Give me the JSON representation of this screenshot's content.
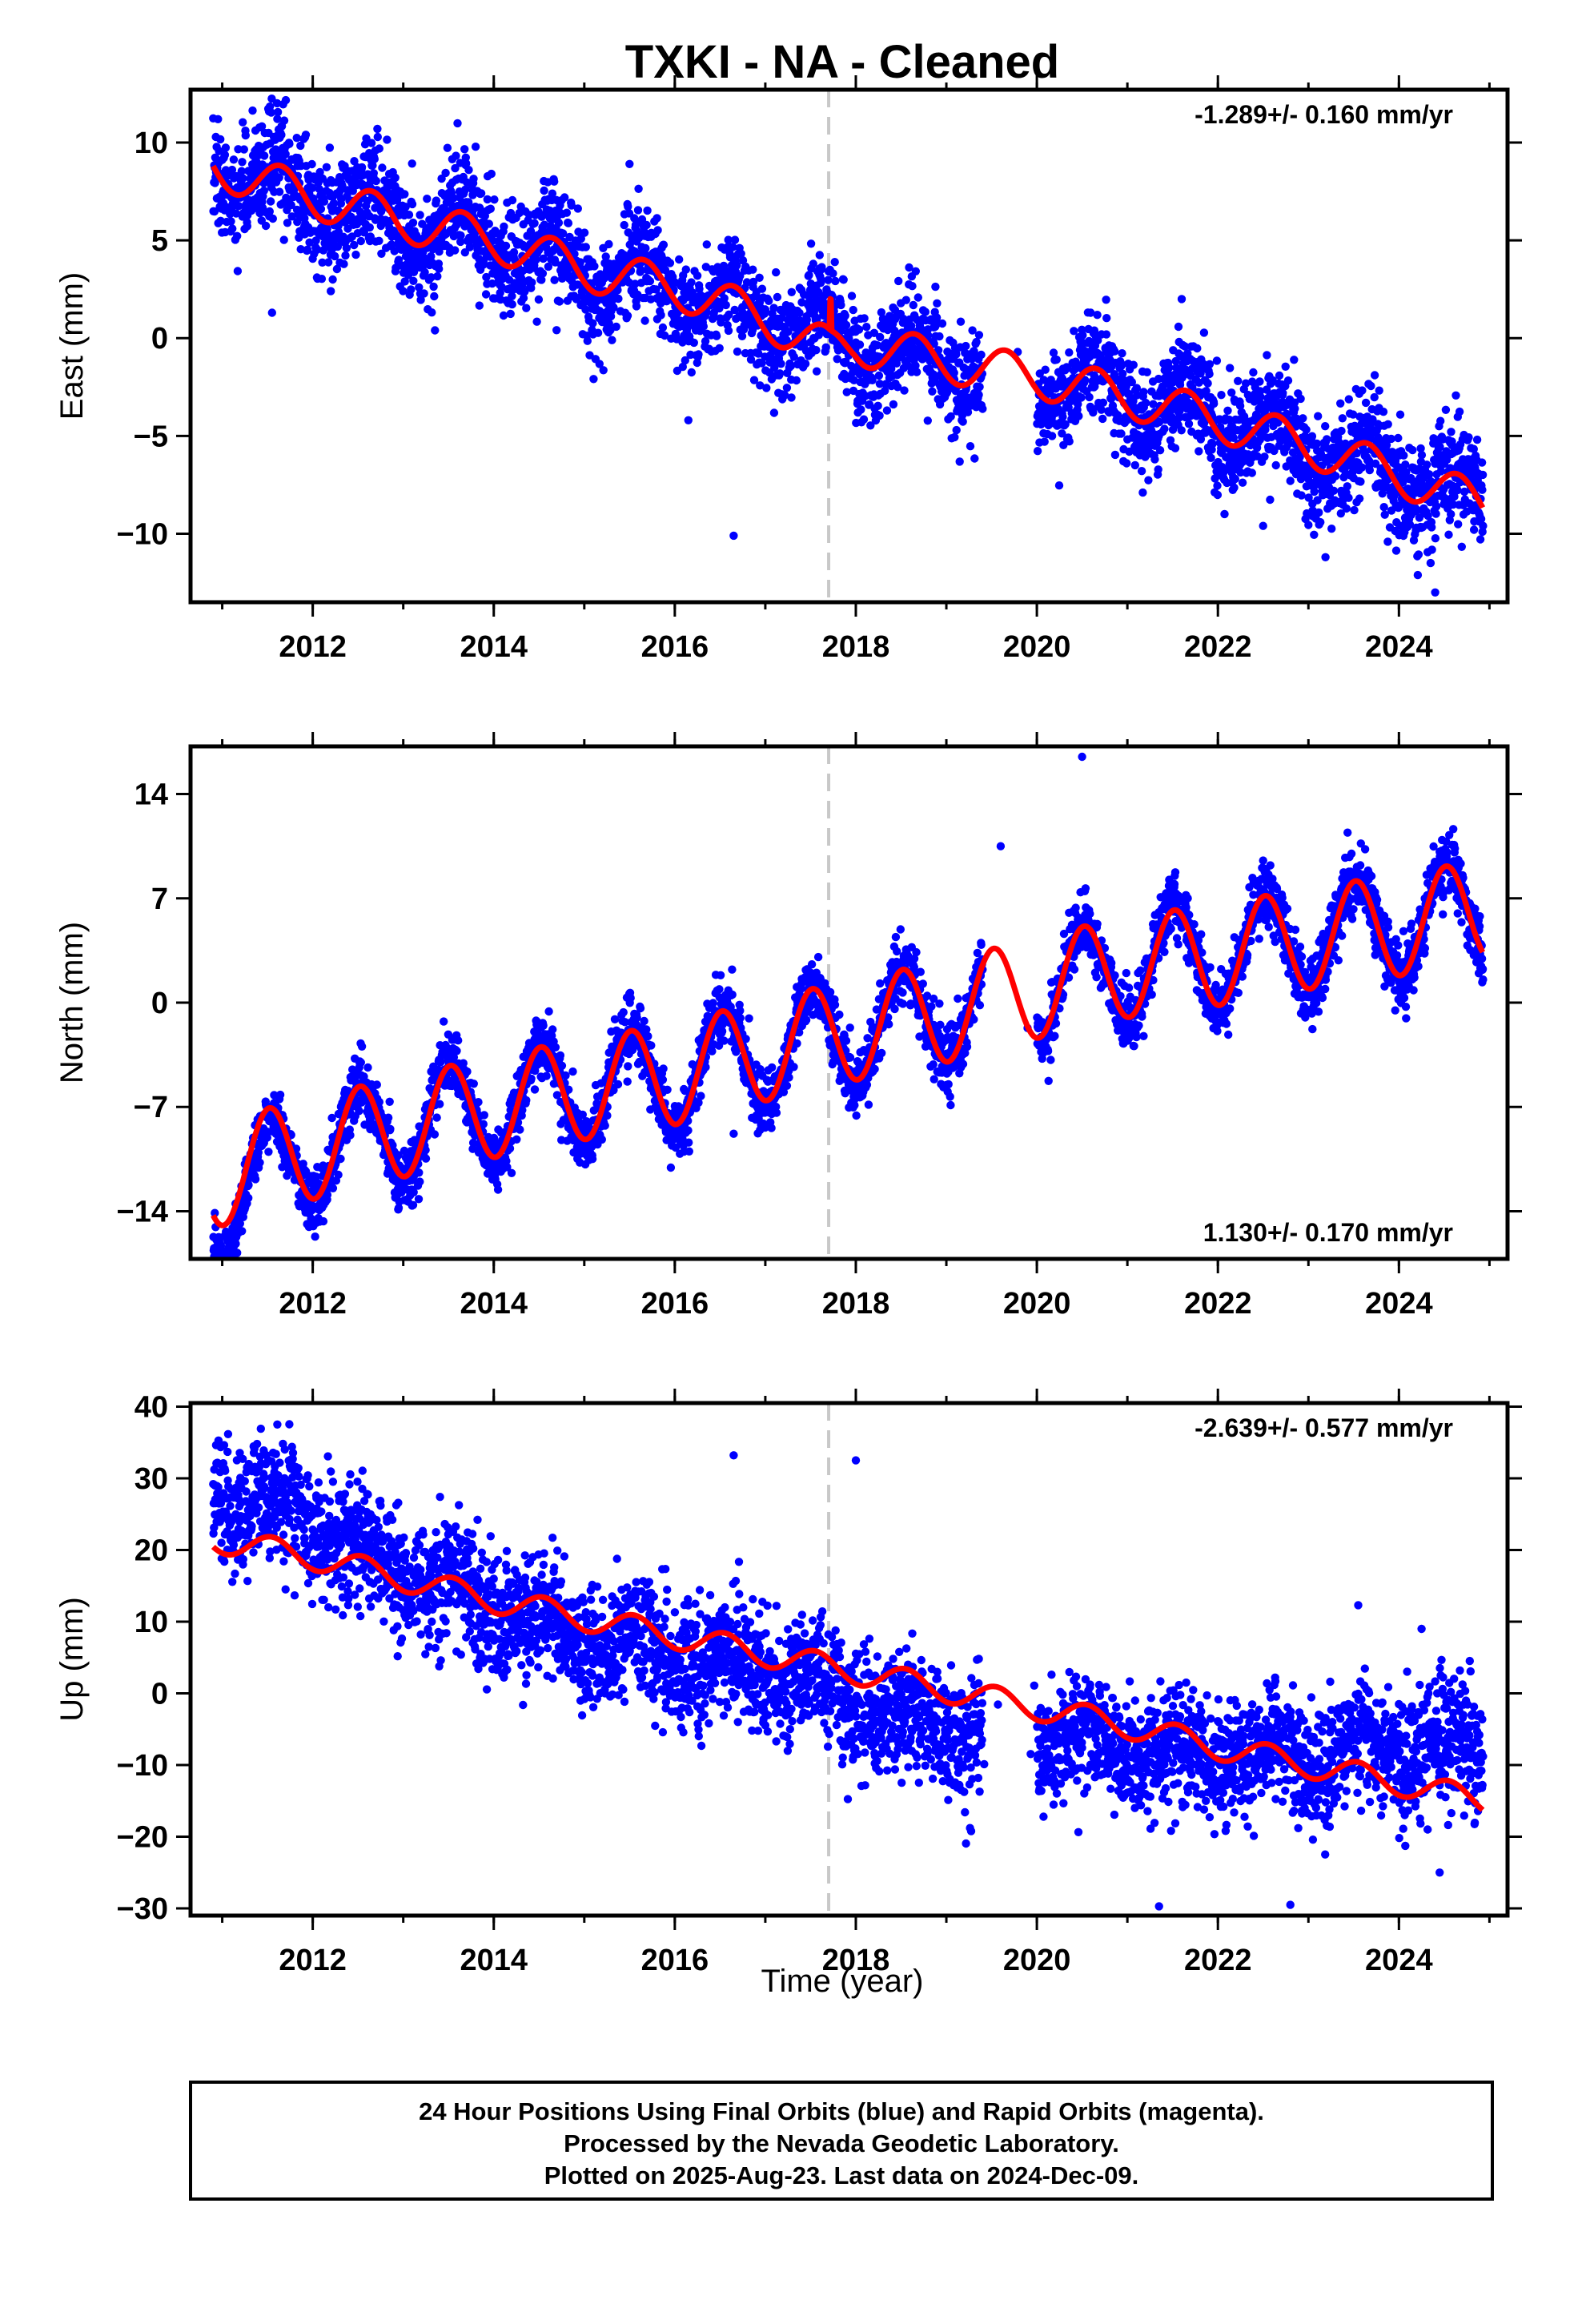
{
  "page": {
    "footer_lines": [
      "24 Hour Positions Using Final Orbits (blue) and Rapid Orbits (magenta).",
      "Processed by the Nevada Geodetic Laboratory.",
      "Plotted on 2025-Aug-23. Last data on 2024-Dec-09."
    ]
  },
  "colors": {
    "final_orbits": "#0000ff",
    "model_fit": "#ff0000",
    "equipment_change": "#c8c8c8",
    "frame": "#000000"
  },
  "chart_data": [
    {
      "type": "scatter",
      "title": "TXKI  - NA - Cleaned",
      "ylabel": "East (mm)",
      "xlabel": "",
      "xlim": [
        2010.65,
        2025.2
      ],
      "ylim": [
        -13.5,
        12.7
      ],
      "xticks": [
        2012,
        2014,
        2016,
        2018,
        2020,
        2022,
        2024
      ],
      "xtick_labels": [
        "2012",
        "2014",
        "2016",
        "2018",
        "2020",
        "2022",
        "2024"
      ],
      "yticks": [
        10,
        5,
        0,
        -5,
        -10
      ],
      "ytick_labels": [
        "10",
        "5",
        "0",
        "−5",
        "−10"
      ],
      "rate_label": "-1.289+/- 0.160 mm/yr",
      "rate_position": "top-right",
      "equipment_change_year": 2017.7,
      "data_gap": [
        2019.4,
        2020.0
      ],
      "series": [
        {
          "kind": "points",
          "color": "#0000ff",
          "x_start": 2010.9,
          "x_end": 2024.93,
          "base": [
            [
              2010.9,
              8.8
            ],
            [
              2012.0,
              7.2
            ],
            [
              2013.0,
              6.0
            ],
            [
              2014.0,
              5.0
            ],
            [
              2015.0,
              3.5
            ],
            [
              2016.0,
              2.6
            ],
            [
              2017.0,
              1.0
            ],
            [
              2018.0,
              -0.3
            ],
            [
              2019.0,
              -1.2
            ],
            [
              2020.0,
              -2.0
            ],
            [
              2021.0,
              -3.0
            ],
            [
              2022.0,
              -4.2
            ],
            [
              2023.0,
              -5.5
            ],
            [
              2024.0,
              -7.0
            ],
            [
              2024.93,
              -8.5
            ]
          ],
          "seasonal_amplitude": 1.3,
          "seasonal_peak_phase": 0.65,
          "noise_sd": 1.35,
          "outliers": [
            [
              2011.55,
              1.3
            ],
            [
              2012.2,
              2.4
            ],
            [
              2013.35,
              0.4
            ],
            [
              2015.5,
              8.9
            ],
            [
              2016.15,
              -4.2
            ],
            [
              2016.65,
              -10.1
            ],
            [
              2021.6,
              2.0
            ],
            [
              2022.5,
              -9.6
            ],
            [
              2024.4,
              -13.0
            ],
            [
              2024.35,
              -11.5
            ]
          ]
        },
        {
          "kind": "line",
          "color": "#ff0000",
          "step_at": 2017.72,
          "step_size": 1.6,
          "base": [
            [
              2010.9,
              8.8
            ],
            [
              2012.0,
              7.2
            ],
            [
              2013.0,
              6.0
            ],
            [
              2014.0,
              5.0
            ],
            [
              2015.0,
              3.5
            ],
            [
              2016.0,
              2.6
            ],
            [
              2017.0,
              1.0
            ],
            [
              2017.72,
              -0.6
            ],
            [
              2018.0,
              -0.3
            ],
            [
              2019.0,
              -1.2
            ],
            [
              2020.0,
              -2.0
            ],
            [
              2021.0,
              -3.0
            ],
            [
              2022.0,
              -4.2
            ],
            [
              2023.0,
              -5.5
            ],
            [
              2024.0,
              -7.0
            ],
            [
              2024.93,
              -8.5
            ]
          ],
          "seasonal_amplitude": 1.1,
          "seasonal_peak_phase": 0.65
        }
      ]
    },
    {
      "type": "scatter",
      "title": "",
      "ylabel": "North (mm)",
      "xlabel": "",
      "xlim": [
        2010.65,
        2025.2
      ],
      "ylim": [
        -17.2,
        17.2
      ],
      "xticks": [
        2012,
        2014,
        2016,
        2018,
        2020,
        2022,
        2024
      ],
      "xtick_labels": [
        "2012",
        "2014",
        "2016",
        "2018",
        "2020",
        "2022",
        "2024"
      ],
      "yticks": [
        14,
        7,
        0,
        -7,
        -14
      ],
      "ytick_labels": [
        "14",
        "7",
        "0",
        "−7",
        "−14"
      ],
      "rate_label": "1.130+/- 0.170 mm/yr",
      "rate_position": "bottom-right",
      "equipment_change_year": 2017.7,
      "data_gap": [
        2019.4,
        2020.0
      ],
      "series": [
        {
          "kind": "points",
          "color": "#0000ff",
          "x_start": 2010.9,
          "x_end": 2024.93,
          "base": [
            [
              2010.9,
              -14.0
            ],
            [
              2011.5,
              -11.5
            ],
            [
              2012.0,
              -9.8
            ],
            [
              2013.0,
              -8.3
            ],
            [
              2014.0,
              -7.0
            ],
            [
              2015.0,
              -5.8
            ],
            [
              2016.0,
              -4.8
            ],
            [
              2017.0,
              -3.2
            ],
            [
              2018.0,
              -1.8
            ],
            [
              2019.0,
              -0.6
            ],
            [
              2020.0,
              1.0
            ],
            [
              2021.0,
              2.4
            ],
            [
              2022.0,
              3.2
            ],
            [
              2023.0,
              4.3
            ],
            [
              2024.0,
              5.2
            ],
            [
              2024.93,
              6.2
            ]
          ],
          "seasonal_amplitude": 3.6,
          "seasonal_peak_phase": 0.52,
          "noise_sd": 1.05,
          "outliers": [
            [
              2016.65,
              -8.8
            ],
            [
              2020.5,
              16.5
            ],
            [
              2019.6,
              10.5
            ],
            [
              2011.1,
              -16.0
            ]
          ]
        },
        {
          "kind": "line",
          "color": "#ff0000",
          "step_at": 2017.72,
          "step_size": 0.0,
          "base": [
            [
              2010.9,
              -11.8
            ],
            [
              2011.5,
              -10.5
            ],
            [
              2012.0,
              -9.8
            ],
            [
              2013.0,
              -8.3
            ],
            [
              2014.0,
              -7.0
            ],
            [
              2015.0,
              -5.8
            ],
            [
              2016.0,
              -4.8
            ],
            [
              2017.0,
              -3.2
            ],
            [
              2018.0,
              -1.8
            ],
            [
              2019.0,
              -0.6
            ],
            [
              2020.0,
              1.0
            ],
            [
              2021.0,
              2.4
            ],
            [
              2022.0,
              3.2
            ],
            [
              2023.0,
              4.3
            ],
            [
              2024.0,
              5.2
            ],
            [
              2024.93,
              6.2
            ]
          ],
          "seasonal_amplitude": 3.4,
          "seasonal_peak_phase": 0.52
        }
      ]
    },
    {
      "type": "scatter",
      "title": "",
      "ylabel": "Up (mm)",
      "xlabel": "Time (year)",
      "xlim": [
        2010.65,
        2025.2
      ],
      "ylim": [
        -31,
        40.5
      ],
      "xticks": [
        2012,
        2014,
        2016,
        2018,
        2020,
        2022,
        2024
      ],
      "xtick_labels": [
        "2012",
        "2014",
        "2016",
        "2018",
        "2020",
        "2022",
        "2024"
      ],
      "yticks": [
        40,
        30,
        20,
        10,
        0,
        -10,
        -20,
        -30
      ],
      "ytick_labels": [
        "40",
        "30",
        "20",
        "10",
        "0",
        "−10",
        "−20",
        "−30"
      ],
      "rate_label": "-2.639+/- 0.577 mm/yr",
      "rate_position": "top-right",
      "equipment_change_year": 2017.7,
      "data_gap": [
        2019.4,
        2020.0
      ],
      "series": [
        {
          "kind": "points",
          "color": "#0000ff",
          "x_start": 2010.9,
          "x_end": 2024.93,
          "base": [
            [
              2010.9,
              28.0
            ],
            [
              2012.0,
              24.0
            ],
            [
              2013.0,
              17.0
            ],
            [
              2014.0,
              12.0
            ],
            [
              2015.0,
              8.0
            ],
            [
              2016.0,
              5.0
            ],
            [
              2017.0,
              3.0
            ],
            [
              2018.0,
              -1.0
            ],
            [
              2019.0,
              -5.0
            ],
            [
              2020.0,
              -6.0
            ],
            [
              2021.0,
              -7.0
            ],
            [
              2022.0,
              -8.5
            ],
            [
              2023.0,
              -9.0
            ],
            [
              2024.0,
              -7.5
            ],
            [
              2024.93,
              -8.5
            ]
          ],
          "seasonal_amplitude": 2.0,
          "seasonal_peak_phase": 0.6,
          "noise_sd": 4.2,
          "outliers": [
            [
              2016.65,
              33.2
            ],
            [
              2018.0,
              32.5
            ],
            [
              2021.35,
              -29.7
            ],
            [
              2022.8,
              -29.5
            ],
            [
              2023.55,
              12.3
            ],
            [
              2024.25,
              9.0
            ],
            [
              2024.45,
              -25.0
            ],
            [
              2011.7,
              14.5
            ]
          ]
        },
        {
          "kind": "line",
          "color": "#ff0000",
          "step_at": 2017.72,
          "step_size": 0.0,
          "base": [
            [
              2010.9,
              21.5
            ],
            [
              2012.0,
              19.0
            ],
            [
              2013.0,
              16.0
            ],
            [
              2014.0,
              13.0
            ],
            [
              2015.0,
              10.5
            ],
            [
              2016.0,
              8.0
            ],
            [
              2017.0,
              5.5
            ],
            [
              2018.0,
              3.0
            ],
            [
              2019.0,
              0.5
            ],
            [
              2020.0,
              -2.0
            ],
            [
              2021.0,
              -4.5
            ],
            [
              2022.0,
              -7.5
            ],
            [
              2023.0,
              -10.0
            ],
            [
              2024.0,
              -12.5
            ],
            [
              2024.93,
              -15.0
            ]
          ],
          "seasonal_amplitude": 1.8,
          "seasonal_peak_phase": 0.55
        }
      ]
    }
  ]
}
